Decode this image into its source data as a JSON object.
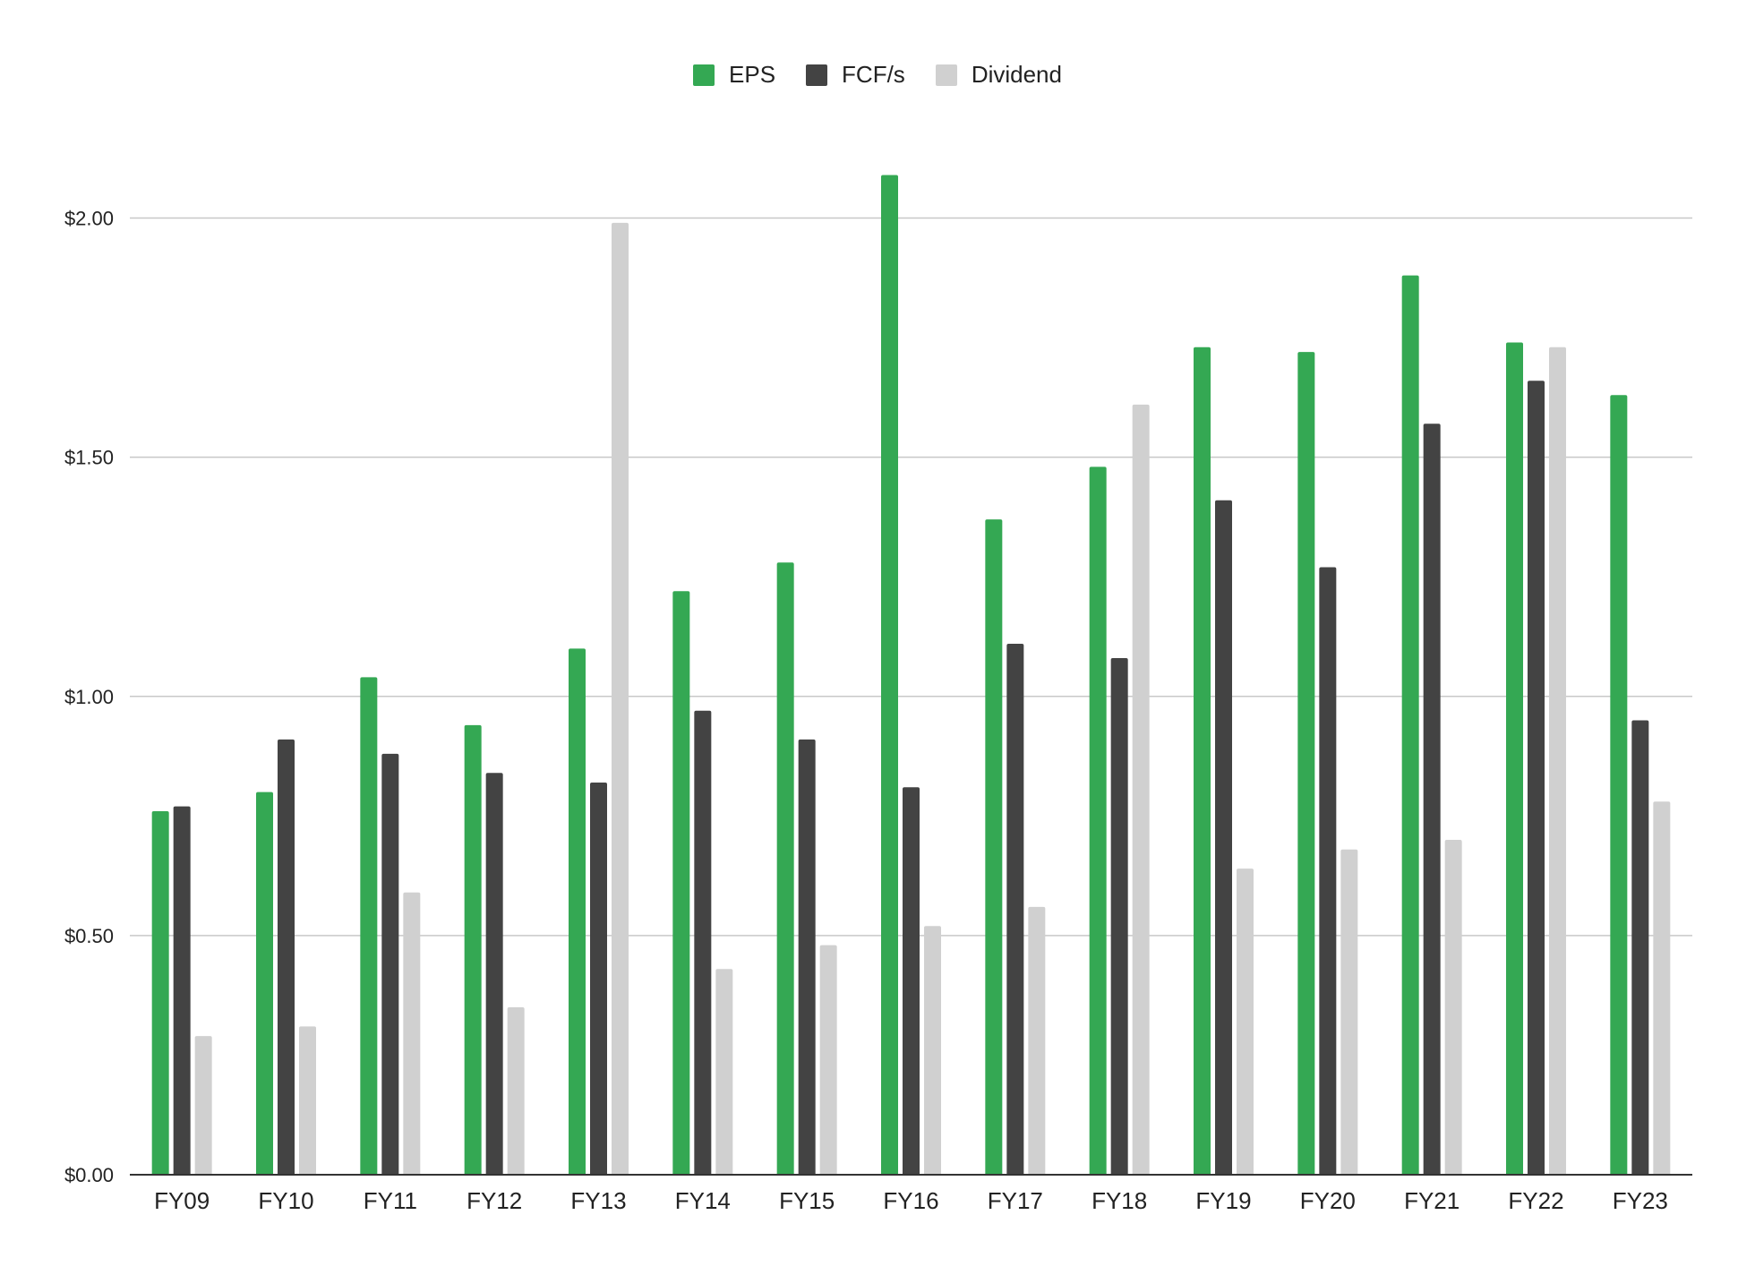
{
  "chart_data": {
    "type": "bar",
    "title": "",
    "xlabel": "",
    "ylabel": "",
    "categories": [
      "FY09",
      "FY10",
      "FY11",
      "FY12",
      "FY13",
      "FY14",
      "FY15",
      "FY16",
      "FY17",
      "FY18",
      "FY19",
      "FY20",
      "FY21",
      "FY22",
      "FY23"
    ],
    "series": [
      {
        "name": "EPS",
        "color": "#34a853",
        "values": [
          0.76,
          0.8,
          1.04,
          0.94,
          1.1,
          1.22,
          1.28,
          2.09,
          1.37,
          1.48,
          1.73,
          1.72,
          1.88,
          1.74,
          1.63
        ]
      },
      {
        "name": "FCF/s",
        "color": "#434343",
        "values": [
          0.77,
          0.91,
          0.88,
          0.84,
          0.82,
          0.97,
          0.91,
          0.81,
          1.11,
          1.08,
          1.41,
          1.27,
          1.57,
          1.66,
          0.95
        ]
      },
      {
        "name": "Dividend",
        "color": "#d0d0d0",
        "values": [
          0.29,
          0.31,
          0.59,
          0.35,
          1.99,
          0.43,
          0.48,
          0.52,
          0.56,
          1.61,
          0.64,
          0.68,
          0.7,
          1.73,
          0.78
        ]
      }
    ],
    "ylim": [
      0,
      2.25
    ],
    "yticks": [
      {
        "value": 0,
        "label": "$0.00"
      },
      {
        "value": 0.5,
        "label": "$0.50"
      },
      {
        "value": 1.0,
        "label": "$1.00"
      },
      {
        "value": 1.5,
        "label": "$1.50"
      },
      {
        "value": 2.0,
        "label": "$2.00"
      }
    ],
    "grid": true,
    "legend_position": "top-center"
  }
}
